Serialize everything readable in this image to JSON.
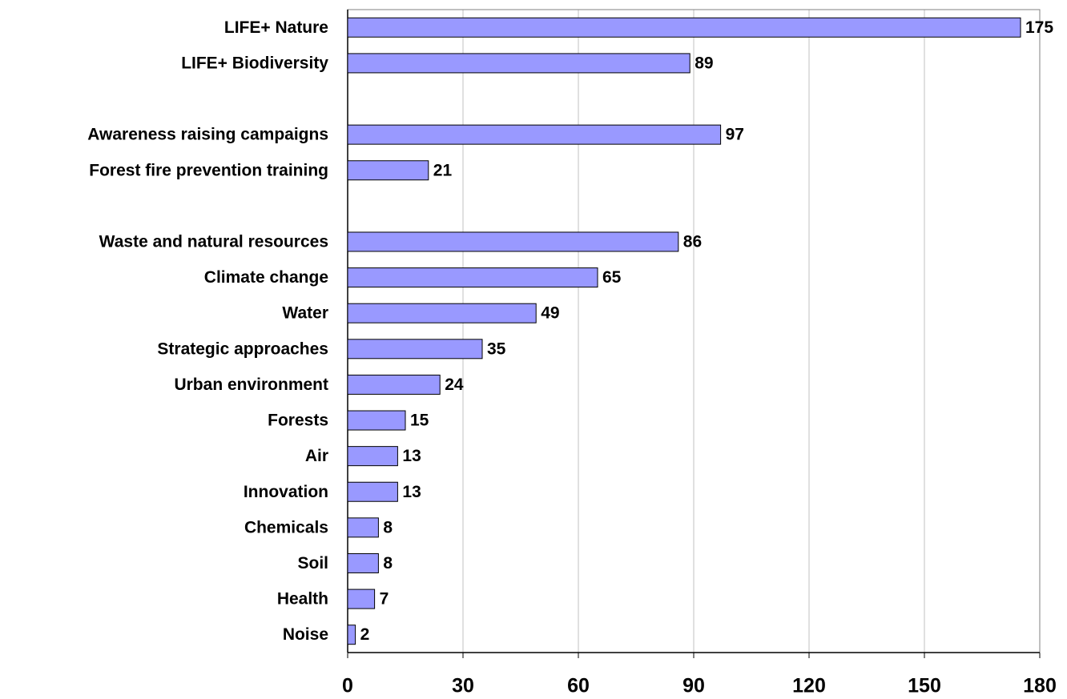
{
  "chart_data": {
    "type": "bar",
    "orientation": "horizontal",
    "categories": [
      "LIFE+ Nature",
      "LIFE+ Biodiversity",
      null,
      "Awareness raising campaigns",
      "Forest fire prevention training",
      null,
      "Waste and natural resources",
      "Climate change",
      "Water",
      "Strategic approaches",
      "Urban environment",
      "Forests",
      "Air",
      "Innovation",
      "Chemicals",
      "Soil",
      "Health",
      "Noise"
    ],
    "values": [
      175,
      89,
      null,
      97,
      21,
      null,
      86,
      65,
      49,
      35,
      24,
      15,
      13,
      13,
      8,
      8,
      7,
      2
    ],
    "color": "#9999ff",
    "xlim": [
      0,
      180
    ],
    "xticks": [
      0,
      30,
      60,
      90,
      120,
      150,
      180
    ],
    "grid": true
  }
}
